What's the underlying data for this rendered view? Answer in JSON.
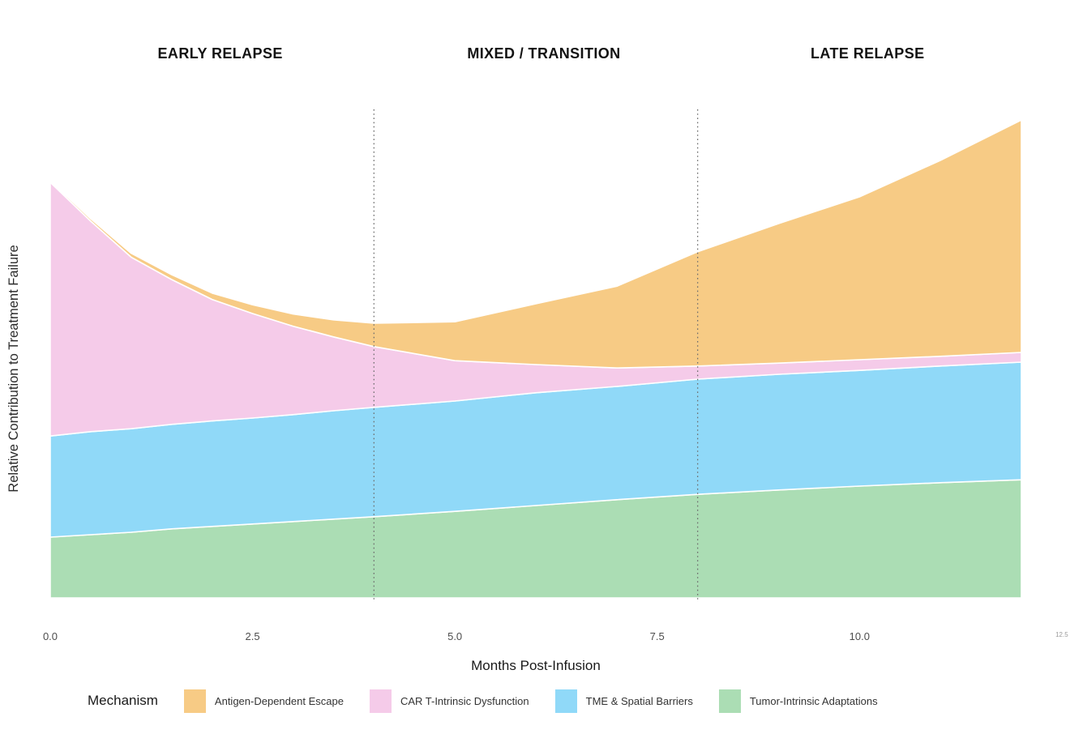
{
  "page": {
    "background": "#ffffff"
  },
  "chart_data": {
    "type": "area",
    "stacked": true,
    "title": "",
    "xlabel": "Months Post-Infusion",
    "ylabel": "Relative Contribution to Treatment Failure",
    "xlim": [
      0,
      12.5
    ],
    "ylim": [
      0,
      1
    ],
    "grid": false,
    "x_ticks": [
      {
        "value": 0,
        "label": "0.0"
      },
      {
        "value": 2.5,
        "label": "2.5"
      },
      {
        "value": 5,
        "label": "5.0"
      },
      {
        "value": 7.5,
        "label": "7.5"
      },
      {
        "value": 10,
        "label": "10.0"
      },
      {
        "value": 12.5,
        "label": "12.5",
        "small": true
      }
    ],
    "x": [
      0,
      0.5,
      1,
      1.5,
      2,
      2.5,
      3,
      3.5,
      4,
      5,
      6,
      7,
      8,
      9,
      10,
      11,
      12
    ],
    "series_bottom_to_top": [
      {
        "name": "Tumor-Intrinsic Adaptations",
        "color": "#ABDDB4",
        "values": [
          0.125,
          0.13,
          0.135,
          0.142,
          0.147,
          0.152,
          0.157,
          0.162,
          0.167,
          0.178,
          0.19,
          0.202,
          0.213,
          0.222,
          0.23,
          0.237,
          0.243
        ]
      },
      {
        "name": "TME & Spatial Barriers",
        "color": "#90D9F8",
        "values": [
          0.208,
          0.212,
          0.213,
          0.215,
          0.217,
          0.218,
          0.22,
          0.223,
          0.225,
          0.227,
          0.232,
          0.233,
          0.237,
          0.238,
          0.238,
          0.24,
          0.242
        ]
      },
      {
        "name": "CAR T-Intrinsic Dysfunction",
        "color": "#F5CBE9",
        "values": [
          0.522,
          0.433,
          0.353,
          0.298,
          0.25,
          0.215,
          0.182,
          0.152,
          0.125,
          0.083,
          0.058,
          0.038,
          0.027,
          0.023,
          0.022,
          0.02,
          0.02
        ]
      },
      {
        "name": "Antigen-Dependent Escape",
        "color": "#F7CB85",
        "values": [
          0.003,
          0.005,
          0.008,
          0.01,
          0.013,
          0.018,
          0.025,
          0.035,
          0.048,
          0.08,
          0.125,
          0.168,
          0.235,
          0.287,
          0.335,
          0.403,
          0.478
        ]
      }
    ],
    "phase_boundaries_x": [
      4,
      8
    ],
    "boundary_line_style": "dotted",
    "annotations": [
      {
        "label": "EARLY RELAPSE",
        "center_x": 2.1
      },
      {
        "label": "MIXED / TRANSITION",
        "center_x": 6.1
      },
      {
        "label": "LATE RELAPSE",
        "center_x": 10.1
      }
    ],
    "legend": {
      "title": "Mechanism",
      "position": "bottom",
      "items": [
        {
          "label": "Antigen-Dependent Escape",
          "color": "#F7CB85"
        },
        {
          "label": "CAR T-Intrinsic Dysfunction",
          "color": "#F5CBE9"
        },
        {
          "label": "TME & Spatial Barriers",
          "color": "#90D9F8"
        },
        {
          "label": "Tumor-Intrinsic Adaptations",
          "color": "#ABDDB4"
        }
      ]
    }
  }
}
